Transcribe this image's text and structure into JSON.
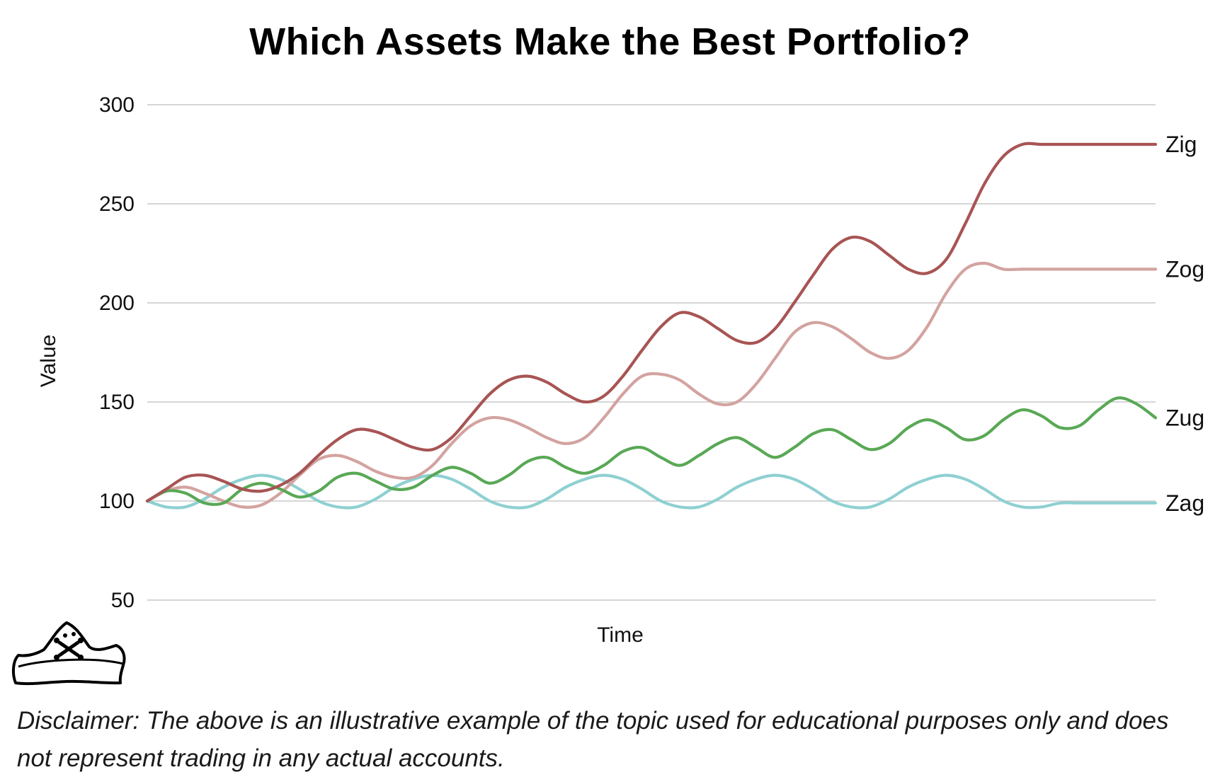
{
  "chart_data": {
    "type": "line",
    "title": "Which Assets Make the Best Portfolio?",
    "xlabel": "Time",
    "ylabel": "Value",
    "ylim": [
      50,
      300
    ],
    "yticks": [
      50,
      100,
      150,
      200,
      250,
      300
    ],
    "grid": true,
    "legend": "inline labels at right end of lines",
    "x": [
      0,
      1,
      2,
      3,
      4,
      5,
      6,
      7,
      8,
      9,
      10,
      11,
      12,
      13,
      14,
      15,
      16,
      17,
      18,
      19,
      20,
      21,
      22,
      23,
      24,
      25,
      26,
      27,
      28,
      29,
      30,
      31,
      32,
      33,
      34,
      35,
      36,
      37,
      38,
      39,
      40,
      41,
      42,
      43,
      44,
      45,
      46,
      47,
      48,
      49,
      50,
      51,
      52,
      53
    ],
    "series": [
      {
        "name": "Zig",
        "color": "#a85454",
        "values": [
          100,
          106,
          112,
          113,
          110,
          106,
          105,
          108,
          114,
          123,
          131,
          136,
          135,
          131,
          127,
          126,
          132,
          143,
          154,
          161,
          163,
          160,
          154,
          150,
          153,
          163,
          176,
          188,
          195,
          193,
          187,
          181,
          180,
          187,
          200,
          214,
          227,
          233,
          231,
          224,
          217,
          215,
          222,
          240,
          260,
          274,
          280,
          280,
          280,
          280,
          280,
          280,
          280,
          280
        ]
      },
      {
        "name": "Zog",
        "color": "#d3a3a0",
        "values": [
          100,
          105,
          107,
          104,
          100,
          97,
          98,
          104,
          113,
          121,
          123,
          120,
          115,
          112,
          112,
          118,
          129,
          138,
          142,
          141,
          137,
          132,
          129,
          132,
          142,
          154,
          163,
          164,
          161,
          154,
          149,
          150,
          159,
          172,
          185,
          190,
          188,
          182,
          175,
          172,
          176,
          188,
          205,
          217,
          220,
          217,
          217,
          217,
          217,
          217,
          217,
          217,
          217,
          217
        ]
      },
      {
        "name": "Zug",
        "color": "#59a855",
        "values": [
          100,
          105,
          104,
          99,
          99,
          106,
          109,
          106,
          102,
          105,
          112,
          114,
          110,
          106,
          107,
          113,
          117,
          114,
          109,
          113,
          120,
          122,
          117,
          114,
          118,
          125,
          127,
          122,
          118,
          123,
          129,
          132,
          127,
          122,
          127,
          134,
          136,
          131,
          126,
          129,
          137,
          141,
          137,
          131,
          133,
          141,
          146,
          143,
          137,
          138,
          146,
          152,
          149,
          142
        ]
      },
      {
        "name": "Zag",
        "color": "#8fd0d2",
        "values": [
          100,
          97,
          97,
          101,
          107,
          111,
          113,
          111,
          106,
          100,
          97,
          97,
          101,
          107,
          111,
          113,
          111,
          106,
          100,
          97,
          97,
          101,
          107,
          111,
          113,
          111,
          106,
          100,
          97,
          97,
          101,
          107,
          111,
          113,
          111,
          106,
          100,
          97,
          97,
          101,
          107,
          111,
          113,
          111,
          106,
          100,
          97,
          97,
          99,
          99,
          99,
          99,
          99,
          99
        ]
      }
    ]
  },
  "disclaimer": "Disclaimer: The above is an illustrative example of the topic used for educational purposes only and does not represent trading in any actual accounts."
}
